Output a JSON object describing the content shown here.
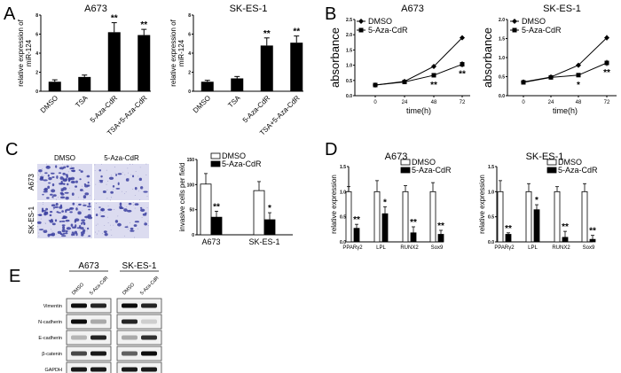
{
  "panel_labels": [
    "A",
    "B",
    "C",
    "D",
    "E"
  ],
  "chart_data": [
    {
      "id": "A-A673",
      "type": "bar",
      "panel": "A",
      "title": "A673",
      "ylabel": "relative expression of miR-124",
      "xlabel": "",
      "ylim": [
        0,
        8
      ],
      "yticks": [
        "0",
        "2",
        "4",
        "6",
        "8"
      ],
      "categories": [
        "DMSO",
        "TSA",
        "5-Aza-CdR",
        "TSA+5-Aza-CdR"
      ],
      "values": [
        1.0,
        1.5,
        6.2,
        5.9
      ],
      "errors": [
        0.2,
        0.2,
        1.0,
        0.6
      ],
      "significance": [
        "",
        "",
        "**",
        "**"
      ]
    },
    {
      "id": "A-SKES1",
      "type": "bar",
      "panel": "A",
      "title": "SK-ES-1",
      "ylabel": "relative expression of miR-124",
      "xlabel": "",
      "ylim": [
        0,
        8
      ],
      "yticks": [
        "0",
        "2",
        "4",
        "6",
        "8"
      ],
      "categories": [
        "DMSO",
        "TSA",
        "5-Aza-CdR",
        "TSA+5-Aza-CdR"
      ],
      "values": [
        1.0,
        1.35,
        4.8,
        5.1
      ],
      "errors": [
        0.15,
        0.2,
        0.8,
        0.7
      ],
      "significance": [
        "",
        "",
        "**",
        "**"
      ]
    },
    {
      "id": "B-A673",
      "type": "line",
      "panel": "B",
      "title": "A673",
      "xlabel": "time(h)",
      "ylabel": "absorbance",
      "x": [
        0,
        24,
        48,
        72
      ],
      "xticks": [
        "0",
        "24",
        "48",
        "72"
      ],
      "ylim": [
        0,
        2.5
      ],
      "yticks": [
        "0.0",
        "0.5",
        "1.0",
        "1.5",
        "2.0",
        "2.5"
      ],
      "series": [
        {
          "name": "DMSO",
          "marker": "diamond",
          "values": [
            0.35,
            0.47,
            0.96,
            1.9
          ],
          "errors": [
            0.02,
            0.02,
            0.03,
            0.04
          ]
        },
        {
          "name": "5-Aza-CdR",
          "marker": "square",
          "values": [
            0.35,
            0.45,
            0.67,
            1.03
          ],
          "errors": [
            0.02,
            0.02,
            0.03,
            0.1
          ]
        }
      ],
      "significance": [
        "",
        "",
        "**",
        "**"
      ],
      "legend": "top-left"
    },
    {
      "id": "B-SKES1",
      "type": "line",
      "panel": "B",
      "title": "SK-ES-1",
      "xlabel": "time(h)",
      "ylabel": "absorbance",
      "x": [
        0,
        24,
        48,
        72
      ],
      "xticks": [
        "0",
        "24",
        "48",
        "72"
      ],
      "ylim": [
        0,
        2.0
      ],
      "yticks": [
        "0.0",
        "0.5",
        "1.0",
        "1.5",
        "2.0"
      ],
      "series": [
        {
          "name": "DMSO",
          "marker": "diamond",
          "values": [
            0.36,
            0.49,
            0.8,
            1.52
          ],
          "errors": [
            0.02,
            0.02,
            0.03,
            0.07
          ]
        },
        {
          "name": "5-Aza-CdR",
          "marker": "square",
          "values": [
            0.35,
            0.48,
            0.54,
            0.86
          ],
          "errors": [
            0.02,
            0.03,
            0.05,
            0.08
          ]
        }
      ],
      "significance": [
        "",
        "",
        "*",
        "**"
      ],
      "legend": "top-left"
    },
    {
      "id": "C-invasion",
      "type": "bar",
      "panel": "C",
      "title": "",
      "ylabel": "invasive cells per field",
      "xlabel": "",
      "ylim": [
        0,
        150
      ],
      "yticks": [
        "0",
        "50",
        "100",
        "150"
      ],
      "categories": [
        "A673",
        "SK-ES-1"
      ],
      "series": [
        {
          "name": "DMSO",
          "fill": "#ffffff",
          "values": [
            101,
            88
          ],
          "errors": [
            21,
            18
          ]
        },
        {
          "name": "5-Aza-CdR",
          "fill": "#000000",
          "values": [
            35,
            30
          ],
          "errors": [
            12,
            14
          ]
        }
      ],
      "significance": [
        "**",
        "*"
      ],
      "legend": "top"
    },
    {
      "id": "D-A673",
      "type": "bar",
      "panel": "D",
      "title": "A673",
      "ylabel": "relative expression",
      "xlabel": "",
      "ylim": [
        0,
        1.5
      ],
      "yticks": [
        "0.0",
        "0.5",
        "1.0",
        "1.5"
      ],
      "categories": [
        "PPARγ2",
        "LPL",
        "RUNX2",
        "Sox9"
      ],
      "series": [
        {
          "name": "DMSO",
          "fill": "#ffffff",
          "values": [
            1,
            1,
            1,
            1
          ],
          "errors": [
            0.1,
            0.22,
            0.12,
            0.18
          ]
        },
        {
          "name": "5-Aza-CdR",
          "fill": "#000000",
          "values": [
            0.27,
            0.56,
            0.18,
            0.15
          ],
          "errors": [
            0.08,
            0.14,
            0.12,
            0.08
          ]
        }
      ],
      "significance": [
        "**",
        "*",
        "**",
        "**"
      ],
      "legend": "top-right"
    },
    {
      "id": "D-SKES1",
      "type": "bar",
      "panel": "D",
      "title": "SK-ES-1",
      "ylabel": "relative expression",
      "xlabel": "",
      "ylim": [
        0,
        1.5
      ],
      "yticks": [
        "0.0",
        "0.5",
        "1.0",
        "1.5"
      ],
      "categories": [
        "PPARγ2",
        "LPL",
        "RUNX2",
        "Sox9"
      ],
      "series": [
        {
          "name": "DMSO",
          "fill": "#ffffff",
          "values": [
            1,
            1,
            1,
            1
          ],
          "errors": [
            0.22,
            0.16,
            0.1,
            0.16
          ]
        },
        {
          "name": "5-Aza-CdR",
          "fill": "#000000",
          "values": [
            0.15,
            0.64,
            0.09,
            0.05
          ],
          "errors": [
            0.03,
            0.1,
            0.12,
            0.08
          ]
        }
      ],
      "significance": [
        "**",
        "*",
        "**",
        "**"
      ],
      "legend": "top-right"
    }
  ],
  "micrographs": {
    "columns": [
      "DMSO",
      "5-Aza-CdR"
    ],
    "rows": [
      "A673",
      "SK-ES-1"
    ],
    "stain_color": "#3b3fa0",
    "background_color": "#dcdcf0",
    "cell_density": [
      [
        0.8,
        0.2
      ],
      [
        0.95,
        0.3
      ]
    ]
  },
  "western_blot": {
    "cell_lines": [
      "A673",
      "SK-ES-1"
    ],
    "lanes": [
      "DMSO",
      "5-Aza-CdR"
    ],
    "proteins": [
      "Vimentin",
      "N-cadherin",
      "E-cadherin",
      "β-catenin",
      "GAPDH"
    ],
    "band_intensity": {
      "A673": [
        [
          0.95,
          0.85
        ],
        [
          0.95,
          0.3
        ],
        [
          0.25,
          0.85
        ],
        [
          0.7,
          0.9
        ],
        [
          0.9,
          0.9
        ]
      ],
      "SK-ES-1": [
        [
          0.95,
          0.85
        ],
        [
          0.85,
          0.15
        ],
        [
          0.3,
          0.8
        ],
        [
          0.6,
          0.95
        ],
        [
          0.9,
          0.9
        ]
      ]
    }
  }
}
